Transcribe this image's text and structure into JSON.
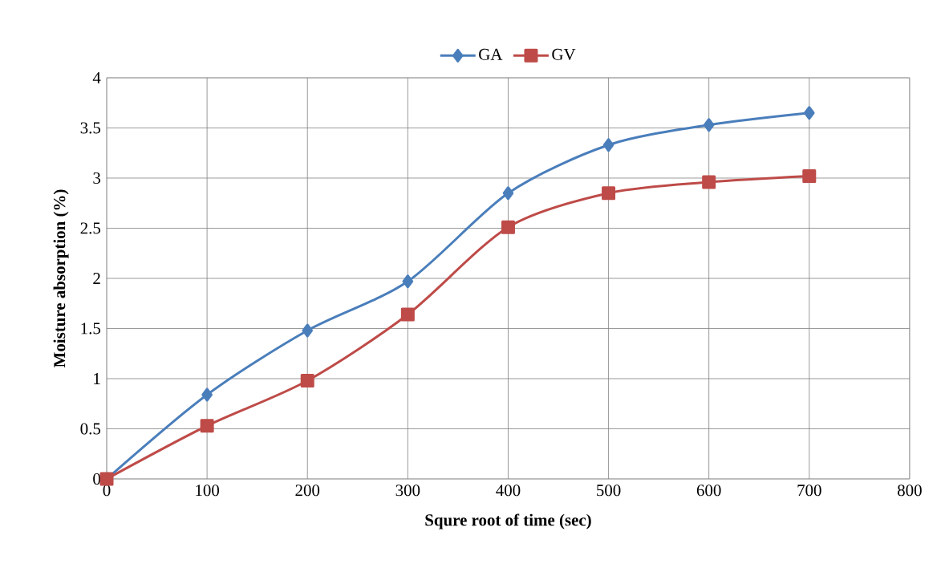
{
  "chart_data": {
    "type": "line",
    "xlabel": "Squre root of time (sec)",
    "ylabel": "Moisture absorption (%)",
    "x": [
      0,
      100,
      200,
      300,
      400,
      500,
      600,
      700
    ],
    "series": [
      {
        "name": "GA",
        "color": "#4a7ebb",
        "marker": "diamond",
        "values": [
          0,
          0.84,
          1.48,
          1.97,
          2.85,
          3.33,
          3.53,
          3.65
        ]
      },
      {
        "name": "GV",
        "color": "#be4b48",
        "marker": "square",
        "values": [
          0,
          0.53,
          0.98,
          1.64,
          2.51,
          2.85,
          2.96,
          3.02
        ]
      }
    ],
    "xlim": [
      0,
      800
    ],
    "xticks": [
      0,
      100,
      200,
      300,
      400,
      500,
      600,
      700,
      800
    ],
    "ylim": [
      0,
      4
    ],
    "yticks": [
      0,
      0.5,
      1,
      1.5,
      2,
      2.5,
      3,
      3.5,
      4
    ],
    "grid": true,
    "legend": "top"
  }
}
